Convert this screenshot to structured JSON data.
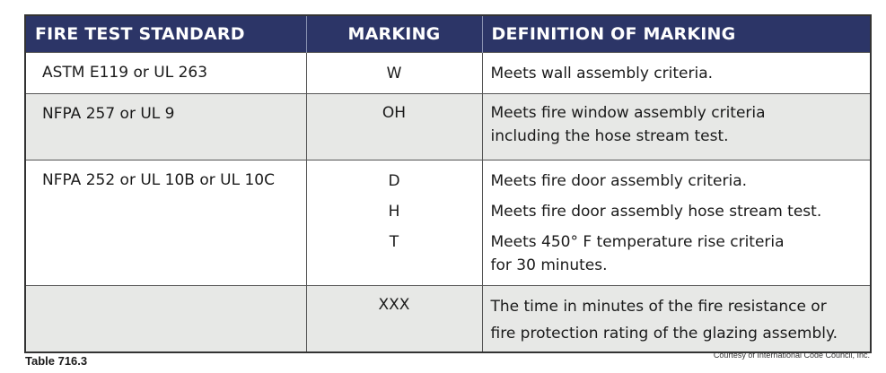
{
  "table": {
    "headers": [
      "FIRE TEST STANDARD",
      "MARKING",
      "DEFINITION OF MARKING"
    ],
    "rows": [
      {
        "standard": "ASTM E119 or UL 263",
        "entries": [
          {
            "marking": "W",
            "definition": [
              "Meets wall assembly criteria."
            ]
          }
        ]
      },
      {
        "standard": "NFPA 257 or UL 9",
        "entries": [
          {
            "marking": "OH",
            "definition": [
              "Meets fire window assembly criteria",
              "including the hose stream test."
            ]
          }
        ]
      },
      {
        "standard": "NFPA 252 or UL 10B or UL 10C",
        "entries": [
          {
            "marking": "D",
            "definition": [
              "Meets fire door assembly criteria."
            ]
          },
          {
            "marking": "H",
            "definition": [
              "Meets fire door assembly hose stream test."
            ]
          },
          {
            "marking": "T",
            "definition": [
              "Meets 450° F temperature rise criteria",
              "for 30 minutes."
            ]
          }
        ]
      },
      {
        "standard": "",
        "entries": [
          {
            "marking": "XXX",
            "definition": [
              "The time in minutes of the fire resistance or",
              "fire protection rating of the glazing assembly."
            ]
          }
        ]
      }
    ]
  },
  "caption": "Table 716.3",
  "credit": "Courtesy of International Code Council, Inc.",
  "colors": {
    "header_bg": "#2c3567",
    "shaded_row": "#e7e8e6"
  }
}
